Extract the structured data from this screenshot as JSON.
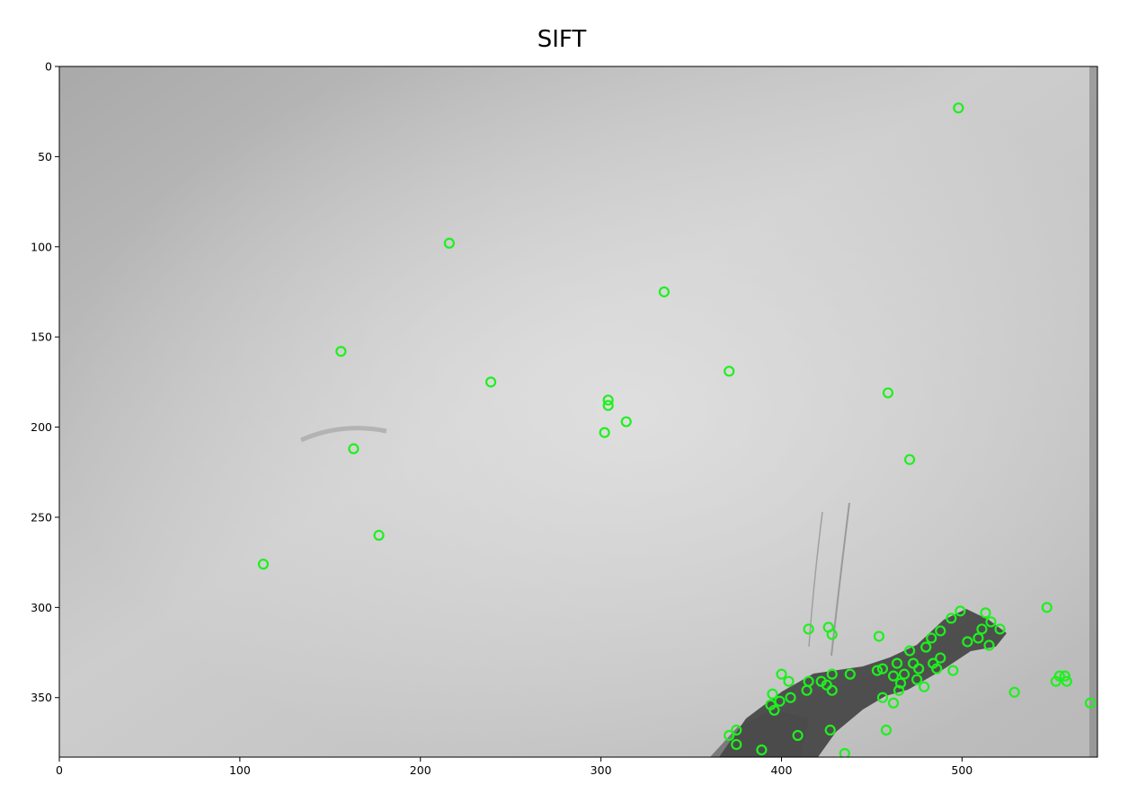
{
  "chart_data": {
    "type": "scatter",
    "title": "SIFT",
    "xlabel": "",
    "ylabel": "",
    "xlim": [
      0,
      575
    ],
    "ylim": [
      383,
      0
    ],
    "y_inverted": true,
    "xticks": [
      0,
      100,
      200,
      300,
      400,
      500
    ],
    "yticks": [
      0,
      50,
      100,
      150,
      200,
      250,
      300,
      350
    ],
    "grid": false,
    "background": "grayscale photograph of a seabed surface with a dark ridge in the lower right",
    "marker": "open circle",
    "marker_color": "#1ef01e",
    "series": [
      {
        "name": "",
        "points": [
          [
            498,
            23
          ],
          [
            216,
            98
          ],
          [
            335,
            125
          ],
          [
            156,
            158
          ],
          [
            371,
            169
          ],
          [
            239,
            175
          ],
          [
            304,
            185
          ],
          [
            304,
            188
          ],
          [
            459,
            181
          ],
          [
            314,
            197
          ],
          [
            302,
            203
          ],
          [
            163,
            212
          ],
          [
            471,
            218
          ],
          [
            177,
            260
          ],
          [
            113,
            276
          ],
          [
            547,
            300
          ],
          [
            499,
            302
          ],
          [
            513,
            303
          ],
          [
            426,
            311
          ],
          [
            415,
            312
          ],
          [
            494,
            306
          ],
          [
            516,
            308
          ],
          [
            511,
            312
          ],
          [
            521,
            312
          ],
          [
            488,
            313
          ],
          [
            428,
            315
          ],
          [
            454,
            316
          ],
          [
            483,
            317
          ],
          [
            509,
            317
          ],
          [
            503,
            319
          ],
          [
            515,
            321
          ],
          [
            480,
            322
          ],
          [
            471,
            324
          ],
          [
            488,
            328
          ],
          [
            484,
            331
          ],
          [
            464,
            331
          ],
          [
            473,
            331
          ],
          [
            476,
            334
          ],
          [
            486,
            334
          ],
          [
            495,
            335
          ],
          [
            453,
            335
          ],
          [
            456,
            334
          ],
          [
            428,
            337
          ],
          [
            400,
            337
          ],
          [
            438,
            337
          ],
          [
            462,
            338
          ],
          [
            468,
            337
          ],
          [
            554,
            338
          ],
          [
            557,
            338
          ],
          [
            404,
            341
          ],
          [
            415,
            341
          ],
          [
            422,
            341
          ],
          [
            475,
            340
          ],
          [
            552,
            341
          ],
          [
            558,
            341
          ],
          [
            466,
            342
          ],
          [
            425,
            343
          ],
          [
            428,
            346
          ],
          [
            414,
            346
          ],
          [
            465,
            346
          ],
          [
            479,
            344
          ],
          [
            395,
            348
          ],
          [
            405,
            350
          ],
          [
            529,
            347
          ],
          [
            456,
            350
          ],
          [
            462,
            353
          ],
          [
            399,
            352
          ],
          [
            394,
            354
          ],
          [
            396,
            357
          ],
          [
            571,
            353
          ],
          [
            427,
            368
          ],
          [
            458,
            368
          ],
          [
            375,
            368
          ],
          [
            409,
            371
          ],
          [
            371,
            371
          ],
          [
            375,
            376
          ],
          [
            389,
            379
          ],
          [
            435,
            381
          ]
        ]
      }
    ]
  }
}
